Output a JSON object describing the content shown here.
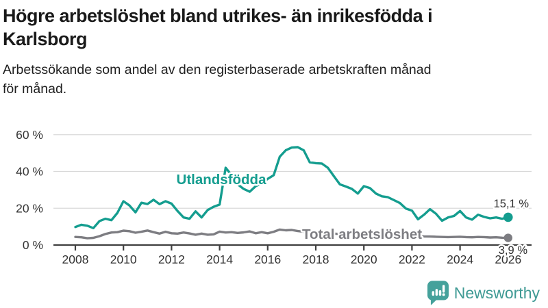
{
  "header": {
    "title": "Högre arbetslöshet bland utrikes- än inrikesfödda i\nKarlsborg",
    "subtitle": "Arbetssökande som andel av den registerbaserade arbetskraften månad\nför månad."
  },
  "footer": {
    "brand": "Newsworthy",
    "brand_color": "#45a19b",
    "logo_icon": "bar-chart-speech-bubble-icon"
  },
  "chart_data": {
    "type": "line",
    "title": "Högre arbetslöshet bland utrikes- än inrikesfödda i Karlsborg",
    "xlabel": "",
    "ylabel": "",
    "grid": true,
    "legend_position": "inline-labels",
    "x_start": 2008,
    "x_step": 0.25,
    "x_axis": {
      "tick_years": [
        2008,
        2010,
        2012,
        2014,
        2016,
        2018,
        2020,
        2022,
        2024,
        2026
      ],
      "tick_labels": [
        "2008",
        "2010",
        "2012",
        "2014",
        "2016",
        "2018",
        "2020",
        "2022",
        "2024",
        "2026"
      ]
    },
    "y_axis": {
      "ticks": [
        0,
        20,
        40,
        60
      ],
      "tick_labels": [
        "0 %",
        "20 %",
        "40 %",
        "60 %"
      ],
      "range": [
        0,
        62
      ],
      "unit": "%"
    },
    "series": [
      {
        "name": "Utlandsfödda",
        "color": "#149d8f",
        "end_value": 15.1,
        "end_label": "15,1 %",
        "values": [
          9.8,
          11.0,
          10.5,
          9.2,
          13.0,
          14.3,
          13.5,
          17.5,
          23.8,
          21.5,
          17.8,
          23.0,
          22.3,
          24.6,
          22.2,
          23.8,
          22.5,
          18.5,
          15.0,
          14.3,
          18.3,
          15.0,
          19.0,
          20.8,
          22.0,
          42.0,
          38.0,
          33.0,
          30.5,
          29.0,
          32.0,
          33.5,
          36.0,
          38.0,
          48.0,
          51.5,
          53.0,
          53.2,
          51.5,
          45.0,
          44.5,
          44.3,
          42.0,
          37.5,
          33.0,
          31.8,
          30.5,
          28.0,
          32.0,
          31.0,
          28.0,
          26.5,
          26.0,
          24.4,
          22.8,
          19.8,
          18.7,
          14.0,
          16.5,
          19.5,
          17.0,
          13.2,
          15.0,
          15.8,
          18.5,
          15.0,
          13.8,
          16.5,
          15.3,
          14.5,
          15.0,
          14.3,
          15.1
        ]
      },
      {
        "name": "Total arbetslöshet",
        "color": "#7d7d82",
        "end_value": 3.9,
        "end_label": "3,9 %",
        "values": [
          4.4,
          4.2,
          3.7,
          3.9,
          4.8,
          6.0,
          6.8,
          7.0,
          7.8,
          7.5,
          6.7,
          7.2,
          7.9,
          7.0,
          6.2,
          7.2,
          6.4,
          6.2,
          6.8,
          6.3,
          5.6,
          6.2,
          5.6,
          5.8,
          7.3,
          6.8,
          7.0,
          6.6,
          6.9,
          7.4,
          6.4,
          7.0,
          6.4,
          7.2,
          8.4,
          8.0,
          8.2,
          7.6,
          7.2,
          7.0,
          6.8,
          6.5,
          6.3,
          6.2,
          6.0,
          6.1,
          5.9,
          6.0,
          6.4,
          6.8,
          6.5,
          6.2,
          6.0,
          5.8,
          5.5,
          5.3,
          5.1,
          4.9,
          4.7,
          4.6,
          4.5,
          4.4,
          4.3,
          4.4,
          4.5,
          4.3,
          4.2,
          4.4,
          4.3,
          4.1,
          4.2,
          4.0,
          3.9
        ]
      }
    ]
  }
}
